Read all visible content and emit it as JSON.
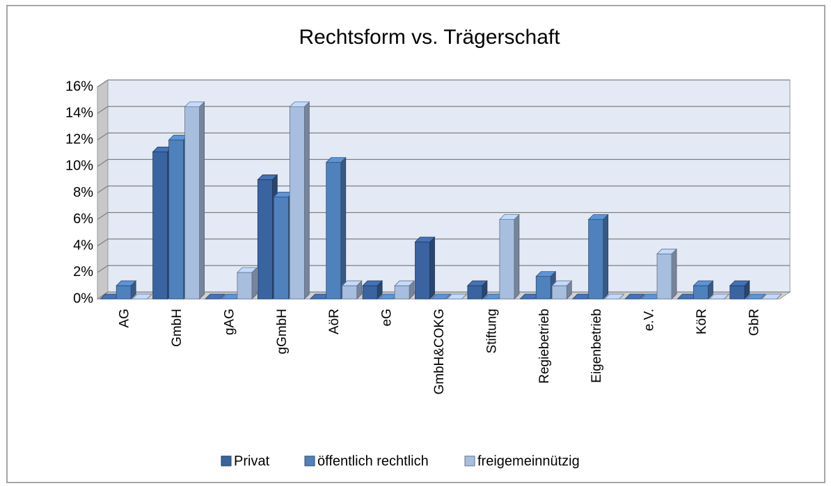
{
  "chart_data": {
    "type": "bar3d",
    "title": "Rechtsform vs. Trägerschaft",
    "categories": [
      "AG",
      "GmbH",
      "gAG",
      "gGmbH",
      "AöR",
      "eG",
      "GmbH&COKG",
      "Stiftung",
      "Regiebetrieb",
      "Eigenbetrieb",
      "e.V.",
      "KöR",
      "GbR"
    ],
    "series": [
      {
        "name": "Privat",
        "color": "#3a64a0",
        "values": [
          0,
          11.1,
          0,
          9,
          0,
          1,
          4.3,
          1,
          0,
          0,
          0,
          0,
          1
        ]
      },
      {
        "name": "öffentlich rechtlich",
        "color": "#4f81bd",
        "values": [
          1,
          12,
          0,
          7.7,
          10.3,
          0,
          0,
          0,
          1.7,
          6,
          0,
          1,
          0
        ]
      },
      {
        "name": "freigemeinnützig",
        "color": "#a8bedf",
        "values": [
          0,
          14.5,
          2,
          14.5,
          1,
          1,
          0,
          6,
          1,
          0,
          3.4,
          0,
          0
        ]
      }
    ],
    "ylim": [
      0,
      16
    ],
    "yticks": [
      {
        "value": 0,
        "label": "0%"
      },
      {
        "value": 2,
        "label": "2%"
      },
      {
        "value": 4,
        "label": "4%"
      },
      {
        "value": 6,
        "label": "6%"
      },
      {
        "value": 8,
        "label": "8%"
      },
      {
        "value": 10,
        "label": "10%"
      },
      {
        "value": 12,
        "label": "12%"
      },
      {
        "value": 14,
        "label": "14%"
      },
      {
        "value": 16,
        "label": "16%"
      }
    ],
    "grid": true,
    "legend": "bottom"
  }
}
